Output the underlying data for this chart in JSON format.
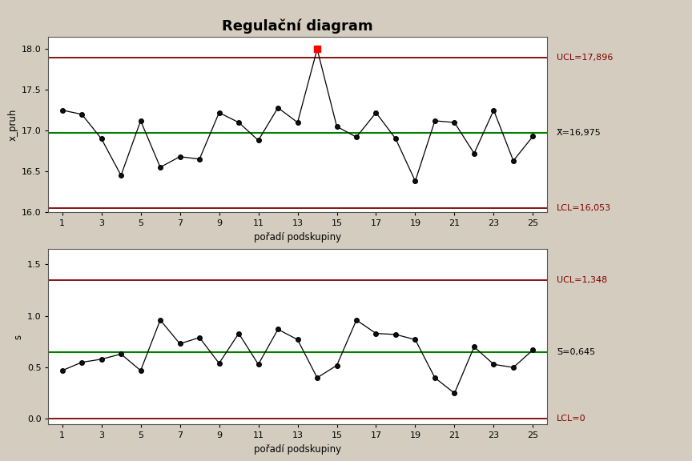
{
  "title": "Regulační diagram",
  "background_color": "#d4cdbf",
  "plot_bg_color": "#ffffff",
  "x_data": [
    1,
    2,
    3,
    4,
    5,
    6,
    7,
    8,
    9,
    10,
    11,
    12,
    13,
    14,
    15,
    16,
    17,
    18,
    19,
    20,
    21,
    22,
    23,
    24,
    25
  ],
  "xbar_values": [
    17.25,
    17.2,
    16.9,
    16.45,
    17.12,
    16.55,
    16.68,
    16.65,
    17.22,
    17.1,
    16.88,
    17.28,
    17.1,
    18.0,
    17.05,
    16.92,
    17.22,
    16.9,
    16.38,
    17.12,
    17.1,
    16.72,
    17.25,
    16.63,
    16.93
  ],
  "xbar_ucl": 17.896,
  "xbar_cl": 16.975,
  "xbar_lcl": 16.053,
  "xbar_ylim": [
    16.0,
    18.15
  ],
  "xbar_yticks": [
    16.0,
    16.5,
    17.0,
    17.5,
    18.0
  ],
  "xbar_ylabel": "x_pruh",
  "xbar_ucl_label": "UCL=17,896",
  "xbar_cl_label": "¯¯\nX=16,975",
  "xbar_lcl_label": "LCL=16,053",
  "xbar_outlier_index": 14,
  "s_values": [
    0.47,
    0.55,
    0.58,
    0.63,
    0.47,
    0.96,
    0.73,
    0.79,
    0.54,
    0.83,
    0.53,
    0.87,
    0.77,
    0.4,
    0.52,
    0.96,
    0.83,
    0.82,
    0.77,
    0.4,
    0.25,
    0.7,
    0.53,
    0.5,
    0.67
  ],
  "s_ucl": 1.348,
  "s_cl": 0.645,
  "s_lcl": 0,
  "s_ylim": [
    -0.05,
    1.65
  ],
  "s_yticks": [
    0.0,
    0.5,
    1.0,
    1.5
  ],
  "s_ylabel": "s",
  "s_ucl_label": "UCL=1,348",
  "s_cl_label": "S̅=0,645",
  "s_lcl_label": "LCL=0",
  "xlabel": "pořadí podskupiny",
  "xticks": [
    1,
    3,
    5,
    7,
    9,
    11,
    13,
    15,
    17,
    19,
    21,
    23,
    25
  ],
  "line_color": "#000000",
  "marker_color": "#000000",
  "ucl_color": "#800000",
  "cl_color": "#008000",
  "lcl_color": "#800000",
  "outlier_color": "#ff0000",
  "title_fontsize": 13,
  "label_fontsize": 8.5,
  "tick_fontsize": 8,
  "annot_fontsize": 8
}
